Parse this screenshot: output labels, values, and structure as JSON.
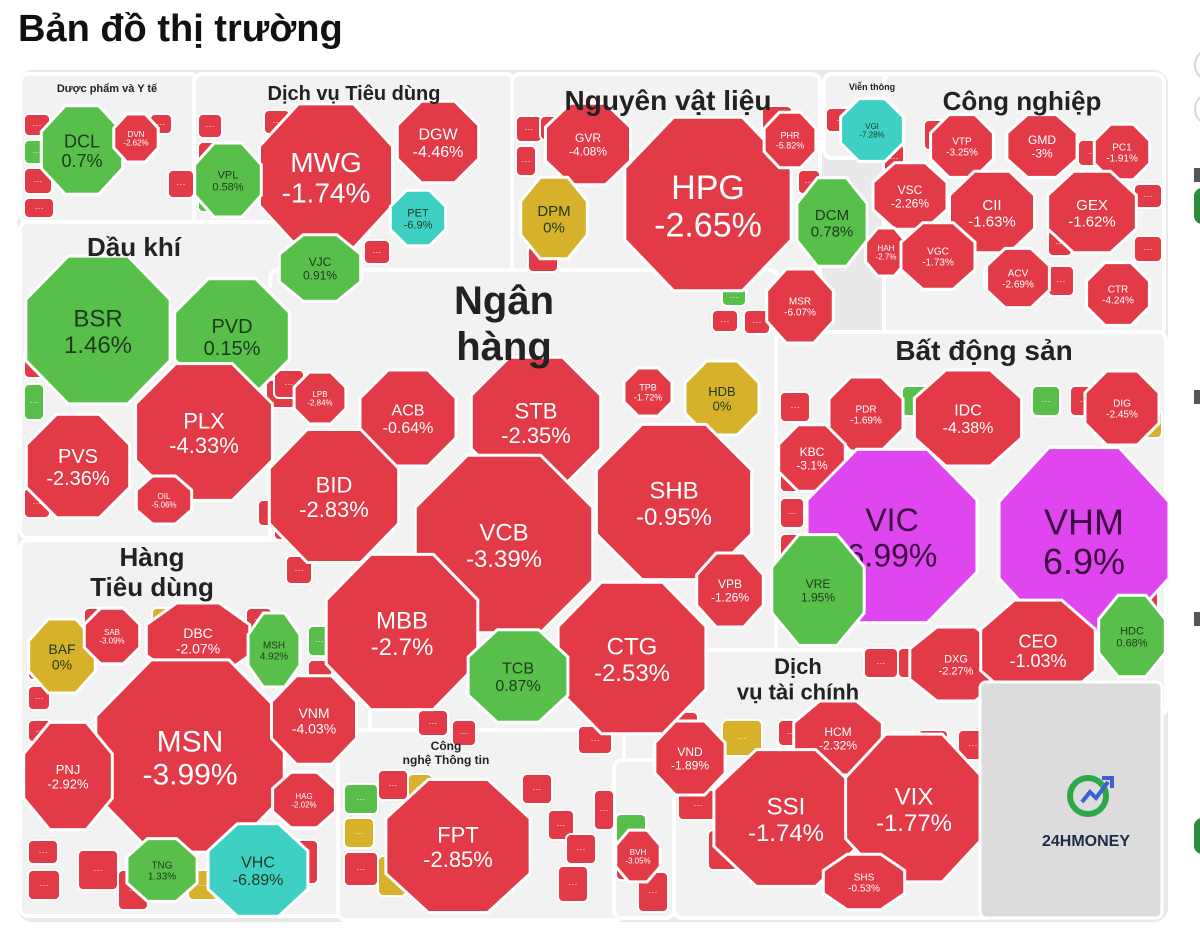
{
  "title": "Bản đồ thị trường",
  "brand": "24HMONEY",
  "colors": {
    "down": "#e33a48",
    "up": "#58c04a",
    "flat": "#d8b12a",
    "ceiling": "#e046f0",
    "floor": "#3fd0c4",
    "stroke": "#ffffff"
  },
  "chart_data": {
    "type": "heatmap",
    "title": "Bản đồ thị trường",
    "sectors": [
      {
        "name": "Dược phẩm và Y tế",
        "stocks": [
          {
            "ticker": "DCL",
            "change": "0.7%",
            "value": 0.7
          },
          {
            "ticker": "DVN",
            "change": "-2.62%",
            "value": -2.62
          }
        ]
      },
      {
        "name": "Dịch vụ Tiêu dùng",
        "stocks": [
          {
            "ticker": "MWG",
            "change": "-1.74%",
            "value": -1.74
          },
          {
            "ticker": "DGW",
            "change": "-4.46%",
            "value": -4.46
          },
          {
            "ticker": "VPL",
            "change": "0.58%",
            "value": 0.58
          },
          {
            "ticker": "PET",
            "change": "-6.9%",
            "value": -6.9
          },
          {
            "ticker": "VJC",
            "change": "0.91%",
            "value": 0.91
          }
        ]
      },
      {
        "name": "Nguyên vật liệu",
        "stocks": [
          {
            "ticker": "HPG",
            "change": "-2.65%",
            "value": -2.65
          },
          {
            "ticker": "GVR",
            "change": "-4.08%",
            "value": -4.08
          },
          {
            "ticker": "DPM",
            "change": "0%",
            "value": 0
          },
          {
            "ticker": "DCM",
            "change": "0.78%",
            "value": 0.78
          },
          {
            "ticker": "PHR",
            "change": "-5.82%",
            "value": -5.82
          },
          {
            "ticker": "MSR",
            "change": "-6.07%",
            "value": -6.07
          }
        ]
      },
      {
        "name": "Viễn thông",
        "stocks": [
          {
            "ticker": "VGI",
            "change": "-7.28%",
            "value": -7.28
          }
        ]
      },
      {
        "name": "Công nghiệp",
        "stocks": [
          {
            "ticker": "VTP",
            "change": "-3.25%",
            "value": -3.25
          },
          {
            "ticker": "GMD",
            "change": "-3%",
            "value": -3
          },
          {
            "ticker": "PC1",
            "change": "-1.91%",
            "value": -1.91
          },
          {
            "ticker": "VSC",
            "change": "-2.26%",
            "value": -2.26
          },
          {
            "ticker": "CII",
            "change": "-1.63%",
            "value": -1.63
          },
          {
            "ticker": "GEX",
            "change": "-1.62%",
            "value": -1.62
          },
          {
            "ticker": "HAH",
            "change": "-2.7%",
            "value": -2.7
          },
          {
            "ticker": "VGC",
            "change": "-1.73%",
            "value": -1.73
          },
          {
            "ticker": "ACV",
            "change": "-2.69%",
            "value": -2.69
          },
          {
            "ticker": "CTR",
            "change": "-4.24%",
            "value": -4.24
          }
        ]
      },
      {
        "name": "Dầu khí",
        "stocks": [
          {
            "ticker": "BSR",
            "change": "1.46%",
            "value": 1.46
          },
          {
            "ticker": "PVD",
            "change": "0.15%",
            "value": 0.15
          },
          {
            "ticker": "PLX",
            "change": "-4.33%",
            "value": -4.33
          },
          {
            "ticker": "PVS",
            "change": "-2.36%",
            "value": -2.36
          },
          {
            "ticker": "OIL",
            "change": "-5.06%",
            "value": -5.06
          }
        ]
      },
      {
        "name": "Ngân hàng",
        "stocks": [
          {
            "ticker": "LPB",
            "change": "-2.84%",
            "value": -2.84
          },
          {
            "ticker": "ACB",
            "change": "-0.64%",
            "value": -0.64
          },
          {
            "ticker": "STB",
            "change": "-2.35%",
            "value": -2.35
          },
          {
            "ticker": "TPB",
            "change": "-1.72%",
            "value": -1.72
          },
          {
            "ticker": "HDB",
            "change": "0%",
            "value": 0
          },
          {
            "ticker": "BID",
            "change": "-2.83%",
            "value": -2.83
          },
          {
            "ticker": "VCB",
            "change": "-3.39%",
            "value": -3.39
          },
          {
            "ticker": "SHB",
            "change": "-0.95%",
            "value": -0.95
          },
          {
            "ticker": "MBB",
            "change": "-2.7%",
            "value": -2.7
          },
          {
            "ticker": "CTG",
            "change": "-2.53%",
            "value": -2.53
          },
          {
            "ticker": "VPB",
            "change": "-1.26%",
            "value": -1.26
          },
          {
            "ticker": "TCB",
            "change": "0.87%",
            "value": 0.87
          }
        ]
      },
      {
        "name": "Bất động sản",
        "stocks": [
          {
            "ticker": "PDR",
            "change": "-1.69%",
            "value": -1.69
          },
          {
            "ticker": "IDC",
            "change": "-4.38%",
            "value": -4.38
          },
          {
            "ticker": "DIG",
            "change": "-2.45%",
            "value": -2.45
          },
          {
            "ticker": "KBC",
            "change": "-3.1%",
            "value": -3.1
          },
          {
            "ticker": "VIC",
            "change": "6.99%",
            "value": 6.99
          },
          {
            "ticker": "VHM",
            "change": "6.9%",
            "value": 6.9
          },
          {
            "ticker": "VRE",
            "change": "1.95%",
            "value": 1.95
          },
          {
            "ticker": "DXG",
            "change": "-2.27%",
            "value": -2.27
          },
          {
            "ticker": "CEO",
            "change": "-1.03%",
            "value": -1.03
          },
          {
            "ticker": "HDC",
            "change": "0.68%",
            "value": 0.68
          }
        ]
      },
      {
        "name": "Hàng Tiêu dùng",
        "stocks": [
          {
            "ticker": "BAF",
            "change": "0%",
            "value": 0
          },
          {
            "ticker": "SAB",
            "change": "-3.09%",
            "value": -3.09
          },
          {
            "ticker": "DBC",
            "change": "-2.07%",
            "value": -2.07
          },
          {
            "ticker": "MSH",
            "change": "4.92%",
            "value": 4.92
          },
          {
            "ticker": "MSN",
            "change": "-3.99%",
            "value": -3.99
          },
          {
            "ticker": "VNM",
            "change": "-4.03%",
            "value": -4.03
          },
          {
            "ticker": "PNJ",
            "change": "-2.92%",
            "value": -2.92
          },
          {
            "ticker": "HAG",
            "change": "-2.02%",
            "value": -2.02
          },
          {
            "ticker": "TNG",
            "change": "1.33%",
            "value": 1.33
          },
          {
            "ticker": "VHC",
            "change": "-6.89%",
            "value": -6.89
          }
        ]
      },
      {
        "name": "Công nghệ Thông tin",
        "stocks": [
          {
            "ticker": "FPT",
            "change": "-2.85%",
            "value": -2.85
          }
        ]
      },
      {
        "name": "",
        "stocks": [
          {
            "ticker": "BVH",
            "change": "-3.05%",
            "value": -3.05
          }
        ]
      },
      {
        "name": "Dịch vụ tài chính",
        "stocks": [
          {
            "ticker": "VND",
            "change": "-1.89%",
            "value": -1.89
          },
          {
            "ticker": "HCM",
            "change": "-2.32%",
            "value": -2.32
          },
          {
            "ticker": "SSI",
            "change": "-1.74%",
            "value": -1.74
          },
          {
            "ticker": "VIX",
            "change": "-1.77%",
            "value": -1.77
          },
          {
            "ticker": "SHS",
            "change": "-0.53%",
            "value": -0.53
          }
        ]
      }
    ]
  }
}
